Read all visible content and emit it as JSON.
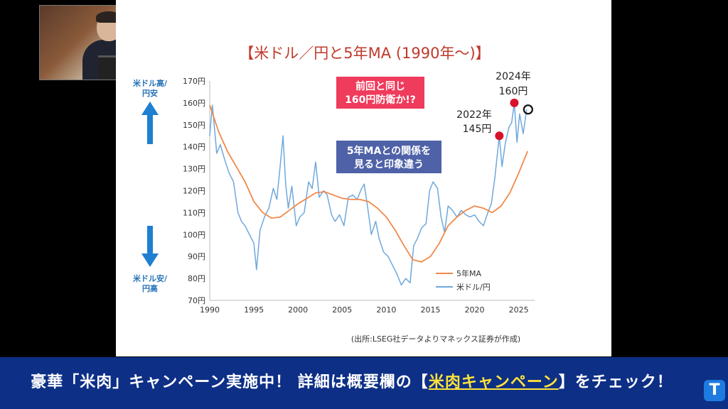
{
  "video": {
    "caption_parts": [
      "豪華「米肉」キャンペーン実施中！ 詳細は概要欄の【",
      "米肉キャンペーン",
      "】をチェック！"
    ],
    "logo_letter": "T"
  },
  "chart_data": {
    "type": "line",
    "title": "【米ドル／円と5年MA (1990年～)】",
    "x_ticks": [
      1990,
      1995,
      2000,
      2005,
      2010,
      2015,
      2020,
      2025
    ],
    "y_ticks": [
      70,
      80,
      90,
      100,
      110,
      120,
      130,
      140,
      150,
      160,
      170
    ],
    "y_tick_labels": [
      "70円",
      "80円",
      "90円",
      "100円",
      "110円",
      "120円",
      "130円",
      "140円",
      "150円",
      "160円",
      "170円"
    ],
    "xlim": [
      1990,
      2026.8
    ],
    "ylim": [
      70,
      170
    ],
    "legend_position": "bottom-right",
    "series": [
      {
        "name": "5年MA",
        "color": "#f08a4b",
        "x": [
          1990,
          1991,
          1992,
          1993,
          1994,
          1995,
          1996,
          1997,
          1998,
          1999,
          2000,
          2001,
          2002,
          2003,
          2004,
          2005,
          2006,
          2007,
          2008,
          2009,
          2010,
          2011,
          2012,
          2013,
          2014,
          2015,
          2016,
          2017,
          2018,
          2019,
          2020,
          2021,
          2022,
          2023,
          2024,
          2025,
          2026
        ],
        "y": [
          159,
          147,
          138,
          131,
          124,
          115,
          110,
          107.5,
          108,
          111,
          114,
          116.5,
          119,
          119.5,
          118,
          116.5,
          116,
          116,
          115,
          112,
          108,
          102,
          95,
          88.5,
          87.5,
          90,
          96,
          104,
          108,
          111,
          113,
          112,
          110,
          113,
          119,
          128,
          138
        ]
      },
      {
        "name": "米ドル/円",
        "color": "#6fa8dc",
        "x": [
          1990,
          1990.3,
          1990.8,
          1991.2,
          1991.7,
          1992.2,
          1992.7,
          1993.2,
          1993.6,
          1994.0,
          1994.5,
          1995.0,
          1995.3,
          1995.7,
          1996.2,
          1996.7,
          1997.2,
          1997.6,
          1998.0,
          1998.3,
          1998.6,
          1998.9,
          1999.3,
          1999.8,
          2000.2,
          2000.7,
          2001.2,
          2001.6,
          2002.0,
          2002.4,
          2002.9,
          2003.3,
          2003.8,
          2004.2,
          2004.7,
          2005.2,
          2005.7,
          2006.2,
          2006.7,
          2007.2,
          2007.5,
          2007.9,
          2008.3,
          2008.8,
          2009.2,
          2009.7,
          2010.2,
          2010.7,
          2011.2,
          2011.7,
          2012.2,
          2012.7,
          2013.1,
          2013.5,
          2014.0,
          2014.5,
          2014.9,
          2015.3,
          2015.8,
          2016.2,
          2016.6,
          2017.0,
          2017.5,
          2018.0,
          2018.5,
          2019.0,
          2019.5,
          2020.0,
          2020.5,
          2021.0,
          2021.5,
          2021.9,
          2022.3,
          2022.8,
          2023.1,
          2023.5,
          2023.9,
          2024.2,
          2024.5,
          2024.8,
          2025.1,
          2025.5,
          2025.9
        ],
        "y": [
          145,
          159,
          137,
          141,
          134,
          128,
          124,
          110,
          106,
          104,
          100,
          96,
          84,
          102,
          108,
          112,
          121,
          116,
          132,
          145,
          123,
          112,
          122,
          104,
          108,
          110,
          124,
          121,
          133,
          117,
          120,
          118,
          109,
          106,
          109,
          104,
          117,
          118,
          116,
          121,
          123,
          112,
          100,
          106,
          98,
          92,
          90,
          86,
          82,
          77,
          80,
          78,
          95,
          98,
          103,
          105,
          120,
          124,
          121,
          108,
          101,
          113,
          111,
          108,
          111,
          109,
          108,
          109,
          106,
          104,
          110,
          114,
          126,
          145,
          131,
          142,
          149,
          151,
          160,
          142,
          155,
          146,
          157
        ]
      }
    ],
    "annotations": {
      "note_red": [
        "前回と同じ",
        "160円防衛か!?"
      ],
      "note_blue": [
        "5年MAとの関係を",
        "見ると印象違う"
      ],
      "label_2022": [
        "2022年",
        "145円"
      ],
      "label_2024": [
        "2024年",
        "160円"
      ],
      "points_red": [
        {
          "x": 2022.8,
          "y": 145
        },
        {
          "x": 2024.5,
          "y": 160
        }
      ],
      "point_current": {
        "x": 2025.9,
        "y": 157
      }
    },
    "left_labels": {
      "top": [
        "米ドル高/",
        "円安"
      ],
      "bottom": [
        "米ドル安/",
        "円高"
      ]
    },
    "source": "(出所:LSEG社データよりマネックス証券が作成)"
  }
}
